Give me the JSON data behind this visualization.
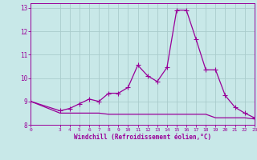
{
  "line1_x": [
    0,
    3,
    4,
    5,
    6,
    7,
    8,
    9,
    10,
    11,
    12,
    13,
    14,
    15,
    16,
    17,
    18,
    19,
    20,
    21,
    22,
    23
  ],
  "line1_y": [
    9.0,
    8.6,
    8.7,
    8.9,
    9.1,
    9.0,
    9.35,
    9.35,
    9.6,
    10.55,
    10.1,
    9.85,
    10.45,
    12.9,
    12.9,
    11.65,
    10.35,
    10.35,
    9.25,
    8.75,
    8.5,
    8.3
  ],
  "line2_x": [
    0,
    3,
    4,
    5,
    6,
    7,
    8,
    9,
    10,
    11,
    12,
    13,
    14,
    15,
    16,
    17,
    18,
    19,
    20,
    21,
    22,
    23
  ],
  "line2_y": [
    9.0,
    8.5,
    8.5,
    8.5,
    8.5,
    8.5,
    8.45,
    8.45,
    8.45,
    8.45,
    8.45,
    8.45,
    8.45,
    8.45,
    8.45,
    8.45,
    8.45,
    8.3,
    8.3,
    8.3,
    8.3,
    8.25
  ],
  "line_color": "#990099",
  "bg_color": "#c8e8e8",
  "grid_color": "#aacccc",
  "xlabel": "Windchill (Refroidissement éolien,°C)",
  "xlabel_color": "#990099",
  "tick_color": "#990099",
  "xlim": [
    0,
    23
  ],
  "ylim": [
    8.0,
    13.2
  ],
  "yticks": [
    8,
    9,
    10,
    11,
    12,
    13
  ],
  "xtick_positions": [
    0,
    3,
    4,
    5,
    6,
    7,
    8,
    9,
    10,
    11,
    12,
    13,
    14,
    15,
    16,
    17,
    18,
    19,
    20,
    21,
    22,
    23
  ],
  "marker_size": 2.0,
  "line_width": 0.9
}
